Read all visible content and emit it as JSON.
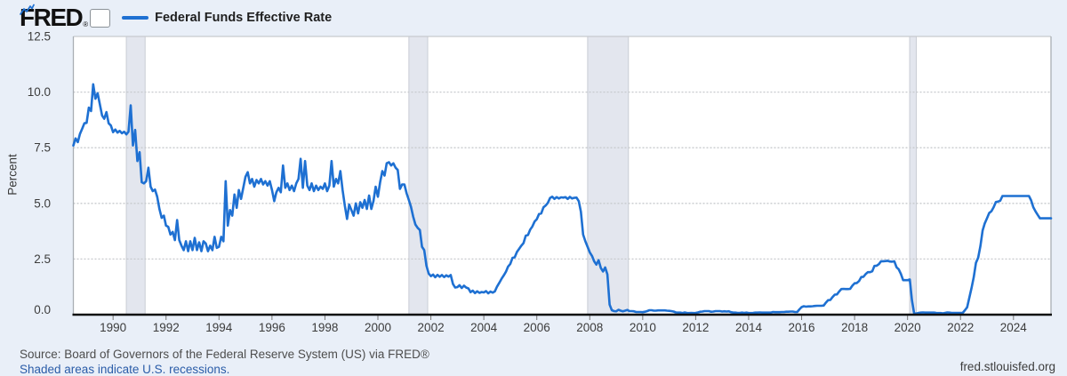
{
  "header": {
    "logo": "FRED",
    "registered": "®",
    "legend_label": "Federal Funds Effective Rate"
  },
  "y_axis": {
    "title": "Percent",
    "ticks": [
      "0.0",
      "2.5",
      "5.0",
      "7.5",
      "10.0",
      "12.5"
    ]
  },
  "x_axis": {
    "ticks": [
      "1990",
      "1992",
      "1994",
      "1996",
      "1998",
      "2000",
      "2002",
      "2004",
      "2006",
      "2008",
      "2010",
      "2012",
      "2014",
      "2016",
      "2018",
      "2020",
      "2022",
      "2024"
    ]
  },
  "footer": {
    "source": "Source: Board of Governors of the Federal Reserve System (US) via FRED®",
    "recessions_note": "Shaded areas indicate U.S. recessions.",
    "site": "fred.stlouisfed.org"
  },
  "colors": {
    "page_bg": "#e9eff8",
    "plot_bg": "#ffffff",
    "grid": "#c7cacd",
    "plot_border": "#a9aeb4",
    "axis": "#111111",
    "tick_text": "#3c3c3c",
    "recession_fill": "#e3e6ee",
    "recession_edge": "#c9cdd5",
    "line": "#1e70d2"
  },
  "chart_data": {
    "type": "line",
    "title": "Federal Funds Effective Rate",
    "ylabel": "Percent",
    "ylim": [
      0,
      12.5
    ],
    "y_tick_step": 2.5,
    "grid": "horizontal-dotted",
    "legend_position": "top-left",
    "frequency": "monthly",
    "x_start": "1988-07",
    "x_end": "2025-06",
    "x_tick_years": [
      1990,
      1992,
      1994,
      1996,
      1998,
      2000,
      2002,
      2004,
      2006,
      2008,
      2010,
      2012,
      2014,
      2016,
      2018,
      2020,
      2022,
      2024
    ],
    "recessions": [
      {
        "from": 1990.5,
        "to": 1991.21
      },
      {
        "from": 2001.17,
        "to": 2001.88
      },
      {
        "from": 2007.92,
        "to": 2009.46
      },
      {
        "from": 2020.08,
        "to": 2020.33
      }
    ],
    "series": [
      {
        "name": "Federal Funds Effective Rate",
        "units": "percent",
        "values": [
          7.6,
          7.92,
          7.75,
          8.12,
          8.35,
          8.6,
          8.62,
          9.3,
          9.15,
          10.35,
          9.7,
          9.95,
          9.45,
          8.95,
          8.8,
          9.1,
          8.6,
          8.5,
          8.2,
          8.32,
          8.18,
          8.26,
          8.15,
          8.22,
          8.1,
          8.22,
          9.4,
          7.6,
          8.3,
          6.9,
          7.3,
          5.95,
          5.9,
          6.0,
          6.6,
          5.75,
          5.55,
          5.62,
          5.3,
          4.75,
          4.35,
          4.45,
          4.0,
          3.95,
          3.6,
          3.72,
          3.35,
          4.25,
          3.35,
          3.1,
          2.9,
          3.3,
          2.85,
          3.3,
          2.9,
          3.45,
          2.9,
          3.25,
          2.85,
          3.3,
          3.2,
          2.85,
          3.1,
          2.9,
          3.5,
          3.0,
          3.05,
          3.5,
          3.3,
          6.0,
          4.0,
          4.7,
          4.45,
          5.4,
          4.8,
          5.6,
          5.2,
          5.7,
          6.2,
          6.4,
          5.9,
          6.1,
          5.75,
          6.05,
          5.9,
          6.1,
          5.85,
          6.0,
          5.8,
          6.0,
          5.6,
          5.1,
          5.5,
          5.7,
          5.5,
          6.7,
          5.7,
          5.9,
          5.6,
          5.8,
          5.55,
          5.9,
          6.1,
          7.0,
          5.7,
          6.9,
          5.8,
          5.6,
          5.9,
          5.55,
          5.8,
          5.6,
          5.75,
          5.65,
          5.9,
          5.55,
          5.8,
          6.9,
          5.75,
          6.1,
          5.9,
          6.45,
          5.6,
          4.9,
          4.3,
          4.95,
          4.7,
          4.45,
          5.0,
          4.55,
          5.05,
          4.8,
          5.15,
          4.75,
          5.35,
          4.75,
          5.1,
          5.75,
          5.3,
          5.95,
          6.45,
          6.25,
          6.8,
          6.85,
          6.7,
          6.8,
          6.6,
          6.5,
          5.65,
          5.85,
          5.85,
          5.45,
          5.15,
          4.85,
          4.4,
          4.05,
          3.9,
          3.8,
          3.05,
          2.9,
          2.2,
          1.85,
          1.73,
          1.8,
          1.68,
          1.79,
          1.7,
          1.78,
          1.69,
          1.77,
          1.71,
          1.78,
          1.38,
          1.22,
          1.24,
          1.32,
          1.2,
          1.3,
          1.22,
          1.18,
          1.01,
          1.08,
          0.97,
          1.05,
          0.98,
          1.02,
          1.0,
          1.06,
          0.96,
          1.04,
          0.99,
          1.05,
          1.26,
          1.43,
          1.61,
          1.76,
          1.93,
          2.16,
          2.28,
          2.55,
          2.58,
          2.82,
          2.96,
          3.1,
          3.22,
          3.55,
          3.58,
          3.82,
          3.96,
          4.18,
          4.29,
          4.52,
          4.55,
          4.82,
          4.9,
          5.02,
          5.24,
          5.3,
          5.2,
          5.28,
          5.22,
          5.27,
          5.26,
          5.28,
          5.2,
          5.29,
          5.22,
          5.25,
          5.26,
          5.1,
          4.63,
          3.6,
          3.3,
          3.05,
          2.8,
          2.64,
          2.4,
          2.25,
          2.45,
          2.1,
          1.94,
          2.12,
          1.81,
          0.45,
          0.2,
          0.16,
          0.15,
          0.22,
          0.18,
          0.15,
          0.18,
          0.21,
          0.16,
          0.16,
          0.15,
          0.12,
          0.12,
          0.12,
          0.11,
          0.13,
          0.16,
          0.2,
          0.2,
          0.18,
          0.18,
          0.19,
          0.19,
          0.19,
          0.19,
          0.18,
          0.17,
          0.16,
          0.14,
          0.1,
          0.09,
          0.09,
          0.07,
          0.1,
          0.08,
          0.07,
          0.08,
          0.07,
          0.08,
          0.1,
          0.13,
          0.14,
          0.16,
          0.16,
          0.16,
          0.13,
          0.14,
          0.16,
          0.16,
          0.16,
          0.14,
          0.15,
          0.14,
          0.15,
          0.11,
          0.09,
          0.09,
          0.08,
          0.08,
          0.09,
          0.08,
          0.09,
          0.07,
          0.07,
          0.08,
          0.09,
          0.09,
          0.1,
          0.09,
          0.09,
          0.09,
          0.09,
          0.09,
          0.12,
          0.11,
          0.11,
          0.11,
          0.12,
          0.12,
          0.13,
          0.13,
          0.14,
          0.14,
          0.12,
          0.12,
          0.24,
          0.34,
          0.38,
          0.36,
          0.37,
          0.37,
          0.38,
          0.39,
          0.4,
          0.4,
          0.4,
          0.41,
          0.54,
          0.65,
          0.66,
          0.79,
          0.9,
          0.91,
          1.04,
          1.15,
          1.16,
          1.15,
          1.15,
          1.16,
          1.3,
          1.41,
          1.42,
          1.51,
          1.69,
          1.7,
          1.82,
          1.91,
          1.91,
          1.95,
          2.19,
          2.2,
          2.27,
          2.4,
          2.4,
          2.41,
          2.42,
          2.39,
          2.38,
          2.4,
          2.13,
          2.04,
          1.83,
          1.55,
          1.55,
          1.55,
          1.58,
          0.65,
          0.05,
          0.05,
          0.08,
          0.09,
          0.1,
          0.09,
          0.09,
          0.09,
          0.09,
          0.09,
          0.08,
          0.07,
          0.07,
          0.06,
          0.08,
          0.1,
          0.09,
          0.08,
          0.08,
          0.08,
          0.08,
          0.08,
          0.08,
          0.2,
          0.33,
          0.77,
          1.21,
          1.68,
          2.33,
          2.56,
          3.08,
          3.78,
          4.1,
          4.33,
          4.57,
          4.65,
          4.83,
          5.06,
          5.08,
          5.12,
          5.33,
          5.33,
          5.33,
          5.33,
          5.33,
          5.33,
          5.33,
          5.33,
          5.33,
          5.33,
          5.33,
          5.33,
          5.33,
          5.13,
          4.83,
          4.64,
          4.48,
          4.33,
          4.33,
          4.33,
          4.33,
          4.33,
          4.33
        ]
      }
    ]
  }
}
